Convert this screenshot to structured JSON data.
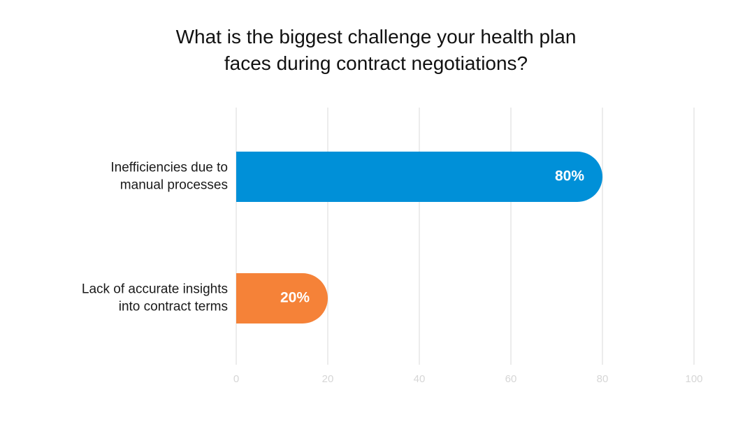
{
  "chart_data": {
    "type": "bar",
    "orientation": "horizontal",
    "title": [
      "What is the biggest challenge your health plan",
      "faces during contract negotiations?"
    ],
    "categories": [
      [
        "Inefficiencies due to",
        "manual processes"
      ],
      [
        "Lack of accurate insights",
        "into contract terms"
      ]
    ],
    "values": [
      80,
      20
    ],
    "value_labels": [
      "80%",
      "20%"
    ],
    "bar_colors": [
      "#0090d8",
      "#f58238"
    ],
    "xlim": [
      0,
      100
    ],
    "xticks": [
      0,
      20,
      40,
      60,
      80,
      100
    ],
    "xtick_labels": [
      "0",
      "20",
      "40",
      "60",
      "80",
      "100"
    ],
    "grid": true,
    "legend": "none"
  }
}
